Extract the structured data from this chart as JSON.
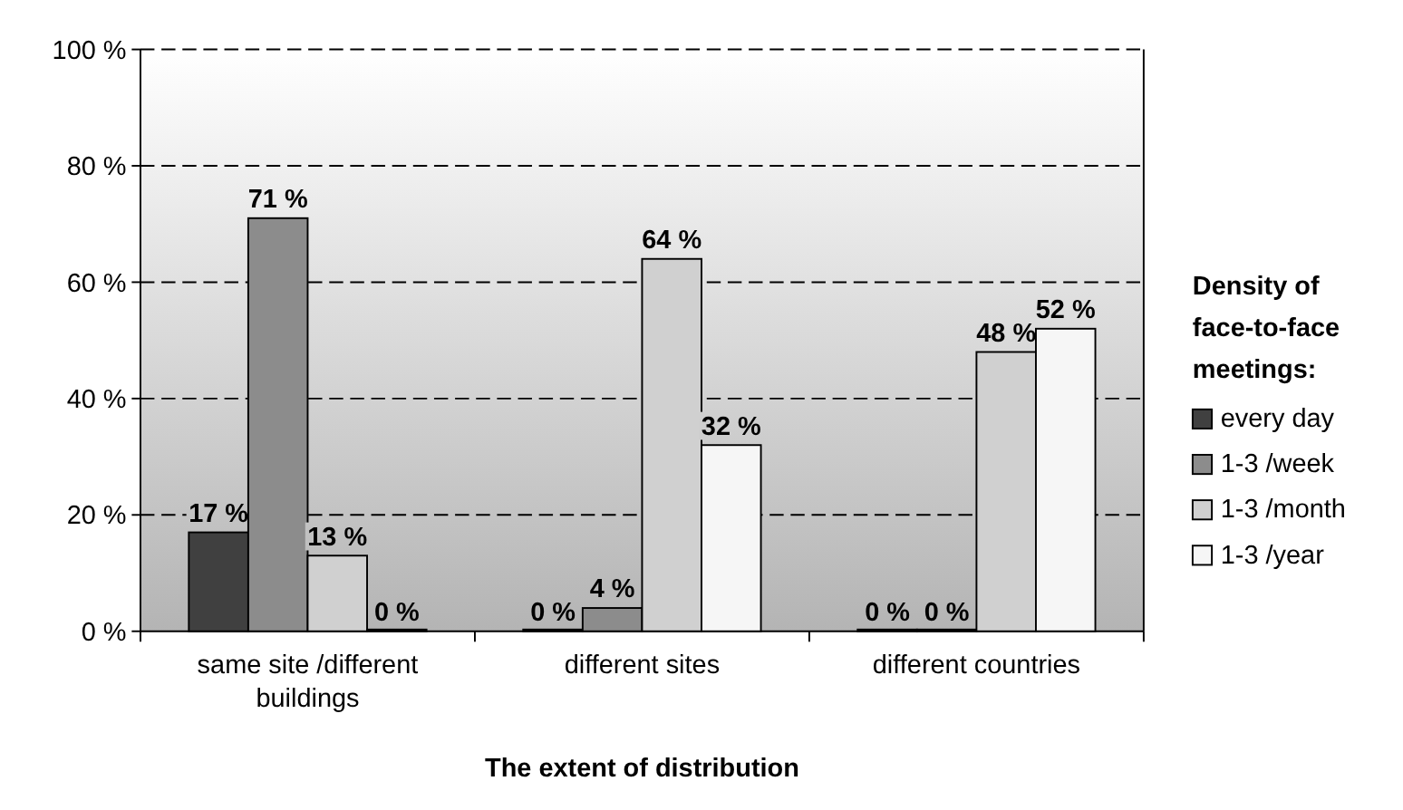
{
  "chart_data": {
    "type": "bar",
    "xlabel": "The extent of distribution",
    "legend_title": "Density of face-to-face meetings:",
    "categories": [
      "same site /different buildings",
      "different sites",
      "different countries"
    ],
    "series": [
      {
        "name": "every day",
        "color": "#404040",
        "values": [
          17,
          0,
          0
        ],
        "value_labels": [
          "17 %",
          "0 %",
          "0 %"
        ]
      },
      {
        "name": "1-3 /week",
        "color": "#8c8c8c",
        "values": [
          71,
          4,
          0
        ],
        "value_labels": [
          "71 %",
          "4 %",
          "0 %"
        ]
      },
      {
        "name": "1-3 /month",
        "color": "#d0d0d0",
        "values": [
          13,
          64,
          48
        ],
        "value_labels": [
          "13 %",
          "64 %",
          "48 %"
        ]
      },
      {
        "name": "1-3 /year",
        "color": "#f6f6f6",
        "values": [
          0,
          32,
          52
        ],
        "value_labels": [
          "0 %",
          "32 %",
          "52 %"
        ]
      }
    ],
    "ylim": [
      0,
      100
    ],
    "yticks": [
      {
        "value": 0,
        "label": "0 %"
      },
      {
        "value": 20,
        "label": "20 %"
      },
      {
        "value": 40,
        "label": "40 %"
      },
      {
        "value": 60,
        "label": "60 %"
      },
      {
        "value": 80,
        "label": "80 %"
      },
      {
        "value": 100,
        "label": "100 %"
      }
    ],
    "grid": "y",
    "legend": "right"
  }
}
